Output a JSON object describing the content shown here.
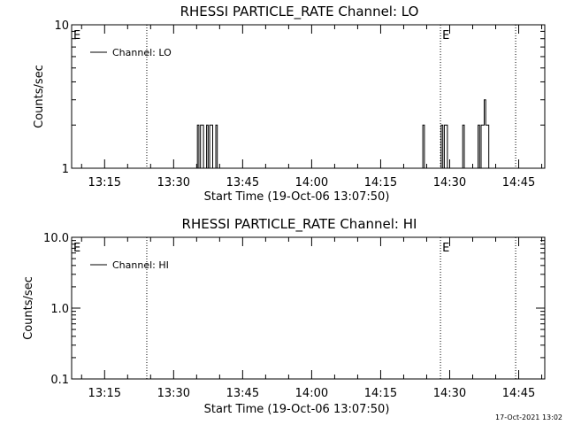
{
  "footer_timestamp": "17-Oct-2021 13:02",
  "chart_data": [
    {
      "type": "line",
      "title": "RHESSI PARTICLE_RATE Channel: LO",
      "xlabel": "Start Time (19-Oct-06 13:07:50)",
      "ylabel": "Counts/sec",
      "y_scale": "log",
      "ylim": [
        1,
        10
      ],
      "y_ticks": [
        {
          "value": 1,
          "label": "1"
        },
        {
          "value": 10,
          "label": "10"
        }
      ],
      "x_ticks": [
        "13:15",
        "13:30",
        "13:45",
        "14:00",
        "14:15",
        "14:30",
        "14:45"
      ],
      "x_range": [
        "13:07:50",
        "14:50:40"
      ],
      "vertical_lines": [
        "13:24:10",
        "14:28:00",
        "14:44:20"
      ],
      "event_markers": [
        {
          "label": "E",
          "time": "13:07:50"
        },
        {
          "label": "E",
          "time": "14:28:00"
        }
      ],
      "legend": {
        "position": "top-left",
        "entries": [
          "Channel: LO"
        ]
      },
      "series": [
        {
          "name": "Channel: LO",
          "x": [
            "13:35:00",
            "13:35:20",
            "13:35:40",
            "13:36:00",
            "13:36:20",
            "13:36:40",
            "13:37:00",
            "13:37:20",
            "13:37:40",
            "13:38:00",
            "13:38:20",
            "13:38:40",
            "13:39:00",
            "13:39:20",
            "13:39:40",
            "14:24:00",
            "14:24:20",
            "14:24:40",
            "14:25:00",
            "14:25:20",
            "14:25:40",
            "14:26:00",
            "14:26:20",
            "14:26:40",
            "14:27:00",
            "14:27:20",
            "14:27:40",
            "14:28:00",
            "14:28:20",
            "14:28:40",
            "14:29:00",
            "14:29:20",
            "14:29:40",
            "14:30:00",
            "14:30:20",
            "14:30:40",
            "14:31:00",
            "14:31:20",
            "14:31:40",
            "14:32:00",
            "14:32:20",
            "14:32:40",
            "14:33:00",
            "14:33:20",
            "14:33:40",
            "14:34:00",
            "14:34:20",
            "14:34:40",
            "14:35:00",
            "14:35:20",
            "14:35:40",
            "14:36:00",
            "14:36:20",
            "14:36:40",
            "14:37:00",
            "14:37:20",
            "14:37:40",
            "14:38:00",
            "14:38:20",
            "14:38:40",
            "14:39:00",
            "14:39:20",
            "14:39:40"
          ],
          "y": [
            1,
            2,
            1,
            2,
            2,
            1,
            1,
            2,
            1,
            2,
            2,
            1,
            1,
            2,
            1,
            1,
            2,
            1,
            1,
            1,
            1,
            1,
            1,
            1,
            1,
            1,
            1,
            1,
            2,
            1,
            2,
            2,
            1,
            1,
            1,
            1,
            1,
            1,
            1,
            1,
            1,
            1,
            2,
            1,
            1,
            1,
            1,
            1,
            1,
            1,
            1,
            1,
            2,
            1,
            2,
            2,
            3,
            2,
            2,
            1,
            1,
            1,
            1
          ]
        }
      ]
    },
    {
      "type": "line",
      "title": "RHESSI PARTICLE_RATE Channel: HI",
      "xlabel": "Start Time (19-Oct-06 13:07:50)",
      "ylabel": "Counts/sec",
      "y_scale": "log",
      "ylim": [
        0.1,
        10
      ],
      "y_ticks": [
        {
          "value": 0.1,
          "label": "0.1"
        },
        {
          "value": 1,
          "label": "1.0"
        },
        {
          "value": 10,
          "label": "10.0"
        }
      ],
      "x_ticks": [
        "13:15",
        "13:30",
        "13:45",
        "14:00",
        "14:15",
        "14:30",
        "14:45"
      ],
      "x_range": [
        "13:07:50",
        "14:50:40"
      ],
      "vertical_lines": [
        "13:24:10",
        "14:28:00",
        "14:44:20"
      ],
      "event_markers": [
        {
          "label": "E",
          "time": "13:07:50"
        },
        {
          "label": "E",
          "time": "14:28:00"
        }
      ],
      "legend": {
        "position": "top-left",
        "entries": [
          "Channel: HI"
        ]
      },
      "series": [
        {
          "name": "Channel: HI",
          "x": [],
          "y": []
        }
      ]
    }
  ]
}
